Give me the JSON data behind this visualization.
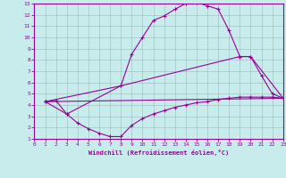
{
  "xlabel": "Windchill (Refroidissement éolien,°C)",
  "background_color": "#c8ecec",
  "line_color": "#990099",
  "xlim": [
    0,
    23
  ],
  "ylim": [
    1,
    13
  ],
  "xticks": [
    0,
    1,
    2,
    3,
    4,
    5,
    6,
    7,
    8,
    9,
    10,
    11,
    12,
    13,
    14,
    15,
    16,
    17,
    18,
    19,
    20,
    21,
    22,
    23
  ],
  "yticks": [
    1,
    2,
    3,
    4,
    5,
    6,
    7,
    8,
    9,
    10,
    11,
    12,
    13
  ],
  "grid_color": "#9ababa",
  "line1_x": [
    1,
    2,
    3,
    4,
    5,
    6,
    7,
    8,
    9,
    10,
    11,
    12,
    13,
    14,
    15,
    16,
    17,
    18,
    19,
    20,
    21,
    22,
    23
  ],
  "line1_y": [
    4.3,
    4.4,
    3.2,
    2.4,
    1.9,
    1.5,
    1.2,
    1.2,
    2.2,
    2.8,
    3.2,
    3.5,
    3.8,
    4.0,
    4.2,
    4.3,
    4.5,
    4.6,
    4.7,
    4.7,
    4.7,
    4.7,
    4.6
  ],
  "line2_x": [
    1,
    3,
    8,
    9,
    10,
    11,
    12,
    13,
    14,
    15,
    16,
    17,
    18,
    19,
    20,
    21,
    22,
    23
  ],
  "line2_y": [
    4.3,
    3.2,
    5.7,
    8.5,
    10.0,
    11.5,
    11.9,
    12.5,
    13.0,
    13.1,
    12.8,
    12.5,
    10.6,
    8.3,
    8.3,
    6.6,
    5.0,
    4.6
  ],
  "line3_x": [
    1,
    8,
    19,
    20,
    23
  ],
  "line3_y": [
    4.3,
    5.7,
    8.3,
    8.3,
    4.6
  ],
  "line4_x": [
    1,
    23
  ],
  "line4_y": [
    4.3,
    4.6
  ]
}
